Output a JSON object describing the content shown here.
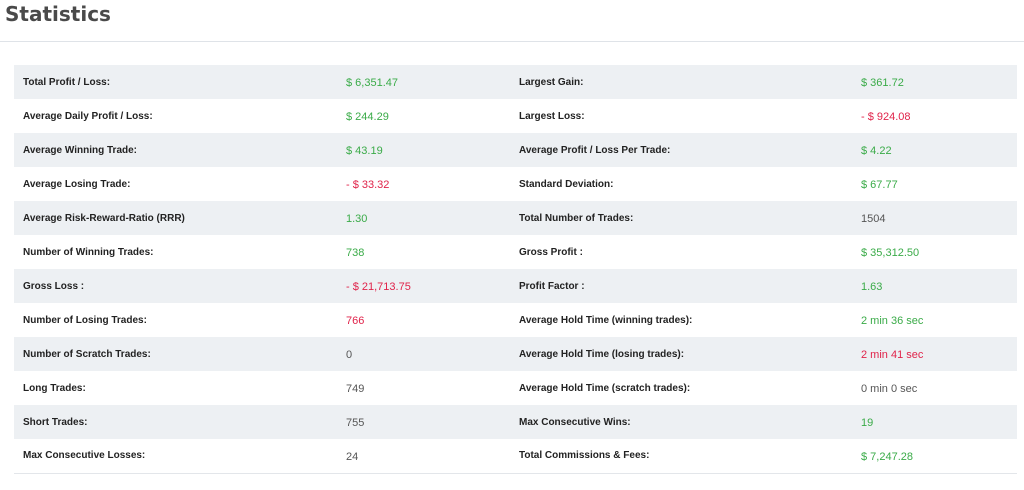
{
  "page": {
    "title": "Statistics"
  },
  "colors": {
    "positive": "#3aab48",
    "negative": "#e0234a",
    "neutral": "#555555",
    "row_shade": "#edf0f3"
  },
  "stats": {
    "rows": [
      {
        "left": {
          "label": "Total Profit / Loss:",
          "value": "$ 6,351.47",
          "tone": "positive"
        },
        "right": {
          "label": "Largest Gain:",
          "value": "$ 361.72",
          "tone": "positive"
        }
      },
      {
        "left": {
          "label": "Average Daily Profit / Loss:",
          "value": "$ 244.29",
          "tone": "positive"
        },
        "right": {
          "label": "Largest Loss:",
          "value": "- $ 924.08",
          "tone": "negative"
        }
      },
      {
        "left": {
          "label": "Average Winning Trade:",
          "value": "$ 43.19",
          "tone": "positive"
        },
        "right": {
          "label": "Average Profit / Loss Per Trade:",
          "value": "$ 4.22",
          "tone": "positive"
        }
      },
      {
        "left": {
          "label": "Average Losing Trade:",
          "value": "- $ 33.32",
          "tone": "negative"
        },
        "right": {
          "label": "Standard Deviation:",
          "value": "$ 67.77",
          "tone": "positive"
        }
      },
      {
        "left": {
          "label": "Average Risk-Reward-Ratio (RRR)",
          "value": "1.30",
          "tone": "positive"
        },
        "right": {
          "label": "Total Number of Trades:",
          "value": "1504",
          "tone": "neutral"
        }
      },
      {
        "left": {
          "label": "Number of Winning Trades:",
          "value": "738",
          "tone": "positive"
        },
        "right": {
          "label": "Gross Profit :",
          "value": "$ 35,312.50",
          "tone": "positive"
        }
      },
      {
        "left": {
          "label": "Gross Loss :",
          "value": "- $ 21,713.75",
          "tone": "negative"
        },
        "right": {
          "label": "Profit Factor :",
          "value": "1.63",
          "tone": "positive"
        }
      },
      {
        "left": {
          "label": "Number of Losing Trades:",
          "value": "766",
          "tone": "negative"
        },
        "right": {
          "label": "Average Hold Time (winning trades):",
          "value": "2 min 36 sec",
          "tone": "positive"
        }
      },
      {
        "left": {
          "label": "Number of Scratch Trades:",
          "value": "0",
          "tone": "neutral"
        },
        "right": {
          "label": "Average Hold Time (losing trades):",
          "value": "2 min 41 sec",
          "tone": "negative"
        }
      },
      {
        "left": {
          "label": "Long Trades:",
          "value": "749",
          "tone": "neutral"
        },
        "right": {
          "label": "Average Hold Time (scratch trades):",
          "value": "0 min 0 sec",
          "tone": "neutral"
        }
      },
      {
        "left": {
          "label": "Short Trades:",
          "value": "755",
          "tone": "neutral"
        },
        "right": {
          "label": "Max Consecutive Wins:",
          "value": "19",
          "tone": "positive"
        }
      },
      {
        "left": {
          "label": "Max Consecutive Losses:",
          "value": "24",
          "tone": "neutral"
        },
        "right": {
          "label": "Total Commissions & Fees:",
          "value": "$ 7,247.28",
          "tone": "positive"
        }
      }
    ]
  }
}
